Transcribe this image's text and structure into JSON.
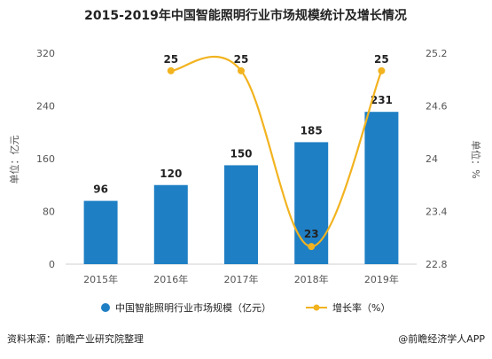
{
  "chart_data": {
    "type": "bar",
    "title": "2015-2019年中国智能照明行业市场规模统计及增长情况",
    "categories": [
      "2015年",
      "2016年",
      "2017年",
      "2018年",
      "2019年"
    ],
    "series": [
      {
        "name": "中国智能照明行业市场规模（亿元）",
        "type": "bar",
        "axis": "left",
        "values": [
          96,
          120,
          150,
          185,
          231
        ],
        "labels": [
          "96",
          "120",
          "150",
          "185",
          "231"
        ]
      },
      {
        "name": "增长率（%）",
        "type": "line",
        "axis": "right",
        "values": [
          null,
          25,
          25,
          23,
          25
        ],
        "labels": [
          "",
          "25",
          "25",
          "23",
          "25"
        ]
      }
    ],
    "ylabel": "单位：亿元",
    "ylabel_right": "单位：%",
    "ylim": [
      0,
      320
    ],
    "yticks": [
      "0",
      "80",
      "160",
      "240",
      "320"
    ],
    "ylim_right": [
      22.8,
      25.2
    ],
    "yticks_right": [
      "22.8",
      "23.4",
      "24",
      "24.6",
      "25.2"
    ],
    "legend_position": "bottom",
    "grid": false
  },
  "colors": {
    "bar": "#1f7fc4",
    "line": "#f2b31f",
    "text": "#222222",
    "axis_text": "#555555"
  },
  "footer": {
    "source": "资料来源：前瞻产业研究院整理",
    "credit": "@前瞻经济学人APP"
  }
}
